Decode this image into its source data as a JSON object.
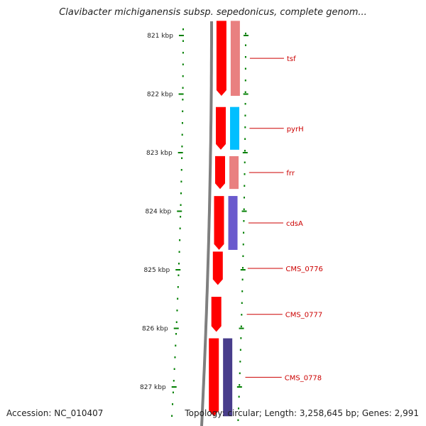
{
  "title": "Clavibacter michiganensis subsp. sepedonicus, complete genom...",
  "footer": {
    "accession": "Accession: NC_010407",
    "summary": "Topology: circular; Length: 3,258,645 bp; Genes: 2,991"
  },
  "ruler": {
    "unit": "kbp",
    "ticks": [
      {
        "kbp": 821,
        "label": "821 kbp"
      },
      {
        "kbp": 822,
        "label": "822 kbp"
      },
      {
        "kbp": 823,
        "label": "823 kbp"
      },
      {
        "kbp": 824,
        "label": "824 kbp"
      },
      {
        "kbp": 825,
        "label": "825 kbp"
      },
      {
        "kbp": 826,
        "label": "826 kbp"
      },
      {
        "kbp": 827,
        "label": "827 kbp"
      }
    ]
  },
  "genes": [
    {
      "name": "tsf",
      "start_kbp": 820.75,
      "end_kbp": 822.03,
      "cog_color": "#e98080"
    },
    {
      "name": "pyrH",
      "start_kbp": 822.22,
      "end_kbp": 822.95,
      "cog_color": "#00bfff"
    },
    {
      "name": "frr",
      "start_kbp": 823.06,
      "end_kbp": 823.62,
      "cog_color": "#e98080"
    },
    {
      "name": "cdsA",
      "start_kbp": 823.74,
      "end_kbp": 824.66,
      "cog_color": "#6a5acd"
    },
    {
      "name": "CMS_0776",
      "start_kbp": 824.69,
      "end_kbp": 825.26,
      "cog_color": ""
    },
    {
      "name": "CMS_0777",
      "start_kbp": 825.46,
      "end_kbp": 826.06,
      "cog_color": ""
    },
    {
      "name": "CMS_0778",
      "start_kbp": 826.17,
      "end_kbp": 827.5,
      "cog_color": "#483d8b"
    }
  ],
  "colors": {
    "cds": "#ff0000",
    "backbone": "#7f7f7f",
    "ruler": "#007f00",
    "skew": "#007f00",
    "label": "#cc0000"
  }
}
